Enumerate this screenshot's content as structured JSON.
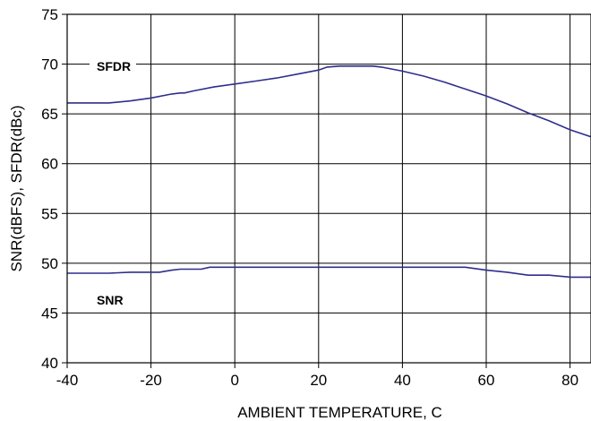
{
  "chart_data": {
    "type": "line",
    "title": "",
    "xlabel": "AMBIENT TEMPERATURE, C",
    "ylabel": "SNR(dBFS), SFDR(dBc)",
    "xlim": [
      -40,
      85
    ],
    "ylim": [
      40,
      75
    ],
    "xticks": [
      -40,
      -20,
      0,
      20,
      40,
      60,
      80
    ],
    "yticks": [
      40,
      45,
      50,
      55,
      60,
      65,
      70,
      75
    ],
    "grid": true,
    "line_color": "#2e2e8c",
    "series": [
      {
        "name": "SFDR",
        "x": [
          -40,
          -30,
          -25,
          -20,
          -15,
          -13,
          -12,
          -10,
          -5,
          0,
          5,
          10,
          15,
          20,
          22,
          25,
          30,
          33,
          35,
          40,
          45,
          50,
          55,
          60,
          65,
          70,
          75,
          80,
          85
        ],
        "y": [
          66.1,
          66.1,
          66.3,
          66.6,
          67.0,
          67.1,
          67.1,
          67.3,
          67.7,
          68.0,
          68.3,
          68.6,
          69.0,
          69.4,
          69.7,
          69.8,
          69.8,
          69.8,
          69.7,
          69.3,
          68.8,
          68.2,
          67.5,
          66.8,
          66.0,
          65.1,
          64.3,
          63.4,
          62.7
        ]
      },
      {
        "name": "SNR",
        "x": [
          -40,
          -30,
          -25,
          -18,
          -15,
          -13,
          -8,
          -6,
          -5,
          0,
          20,
          40,
          55,
          60,
          65,
          70,
          75,
          80,
          85
        ],
        "y": [
          49.0,
          49.0,
          49.1,
          49.1,
          49.3,
          49.4,
          49.4,
          49.6,
          49.6,
          49.6,
          49.6,
          49.6,
          49.6,
          49.3,
          49.1,
          48.8,
          48.8,
          48.6,
          48.6
        ]
      }
    ]
  }
}
